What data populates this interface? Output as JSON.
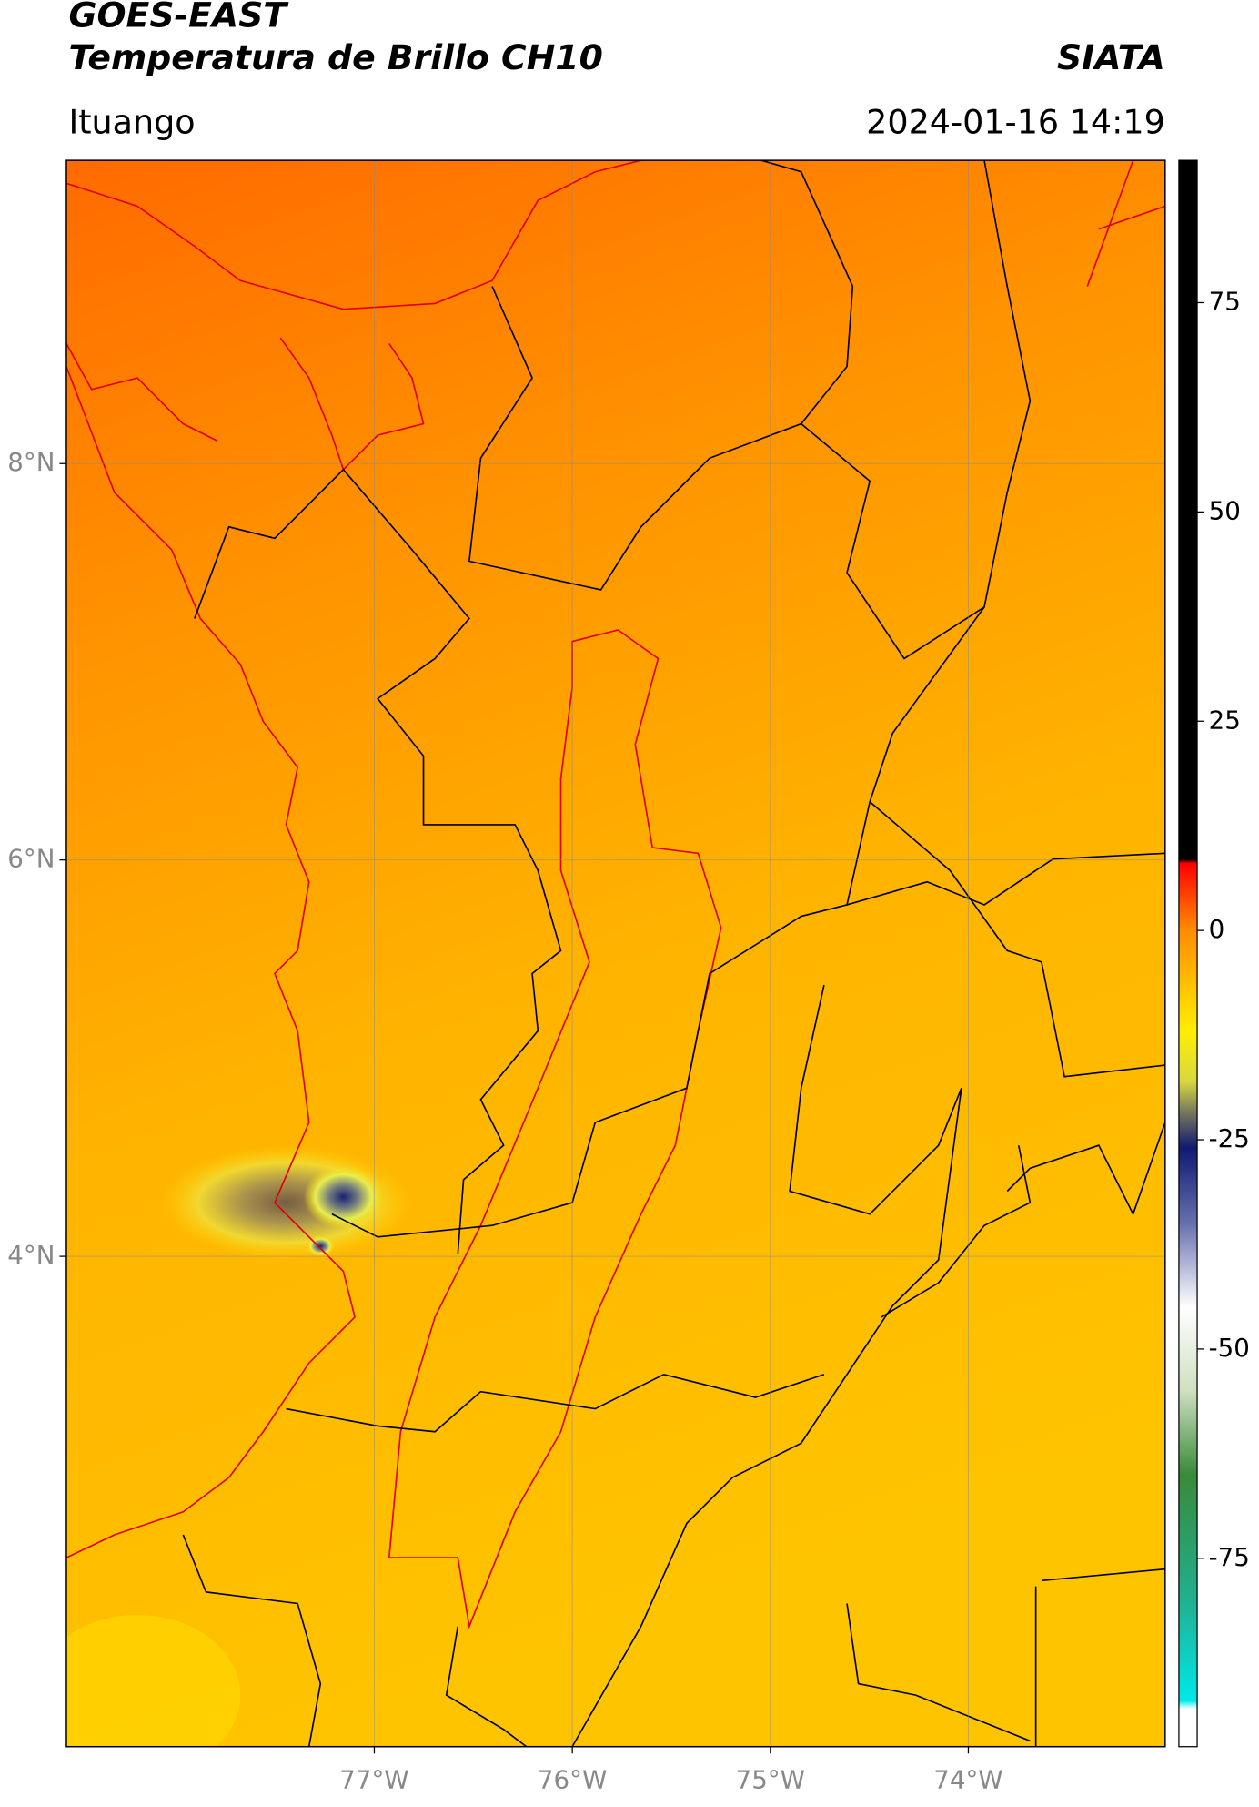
{
  "chart_data": {
    "type": "map",
    "title": "GOES-EAST",
    "subtitle": "Temperatura de Brillo CH10",
    "source": "SIATA",
    "location": "Ituango",
    "timestamp": "2024-01-16 14:19",
    "xlim": [
      -78.555,
      -73.006
    ],
    "ylim": [
      1.526,
      9.53
    ],
    "xticks": [
      {
        "value": -77,
        "label": "77°W"
      },
      {
        "value": -76,
        "label": "76°W"
      },
      {
        "value": -75,
        "label": "75°W"
      },
      {
        "value": -74,
        "label": "74°W"
      }
    ],
    "yticks": [
      {
        "value": 8,
        "label": "8°N"
      },
      {
        "value": 6,
        "label": "6°N"
      },
      {
        "value": 4,
        "label": "4°N"
      }
    ],
    "grid": true,
    "colorbar": {
      "lim": [
        -97.5,
        92
      ],
      "ticks": [
        75,
        50,
        25,
        0,
        -25,
        -50,
        -75
      ],
      "colormap": [
        [
          92,
          "#000000"
        ],
        [
          8.5,
          "#000000"
        ],
        [
          8,
          "#ff0000"
        ],
        [
          0,
          "#ff8c00"
        ],
        [
          -12,
          "#ffee00"
        ],
        [
          -18,
          "#d8d840"
        ],
        [
          -22,
          "#707060"
        ],
        [
          -26,
          "#101a70"
        ],
        [
          -35,
          "#6670b0"
        ],
        [
          -45,
          "#ffffff"
        ],
        [
          -55,
          "#cfe0c0"
        ],
        [
          -65,
          "#3a8a3a"
        ],
        [
          -80,
          "#20b090"
        ],
        [
          -92,
          "#00e8e8"
        ],
        [
          -93,
          "#ffffff"
        ],
        [
          -97.5,
          "#ffffff"
        ]
      ]
    }
  }
}
